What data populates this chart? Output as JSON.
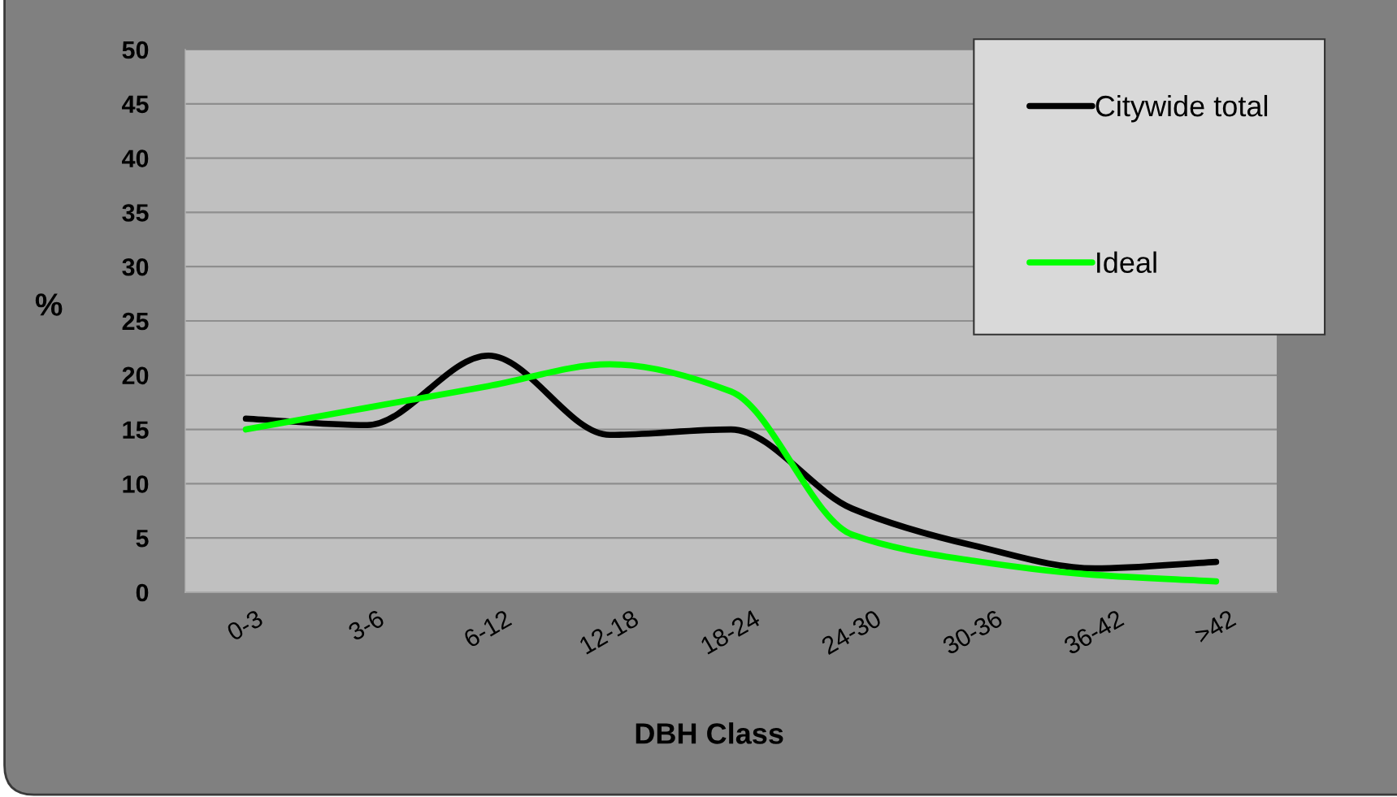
{
  "chart_data": {
    "type": "line",
    "xlabel": "DBH Class",
    "ylabel": "%",
    "categories": [
      "0-3",
      "3-6",
      "6-12",
      "12-18",
      "18-24",
      "24-30",
      "30-36",
      "36-42",
      ">42"
    ],
    "series": [
      {
        "name": "Citywide total",
        "color": "#000000",
        "values": [
          16,
          15.4,
          21.8,
          14.5,
          15,
          7.7,
          4.3,
          2.2,
          2.8
        ]
      },
      {
        "name": "Ideal",
        "color": "#00ff00",
        "values": [
          15,
          17,
          19,
          21,
          18.5,
          5.3,
          2.9,
          1.6,
          1
        ]
      }
    ],
    "ylim": [
      0,
      50
    ],
    "yticks": [
      0,
      5,
      10,
      15,
      20,
      25,
      30,
      35,
      40,
      45,
      50
    ],
    "grid": "y",
    "legend": "top right",
    "line_style": "solid"
  }
}
